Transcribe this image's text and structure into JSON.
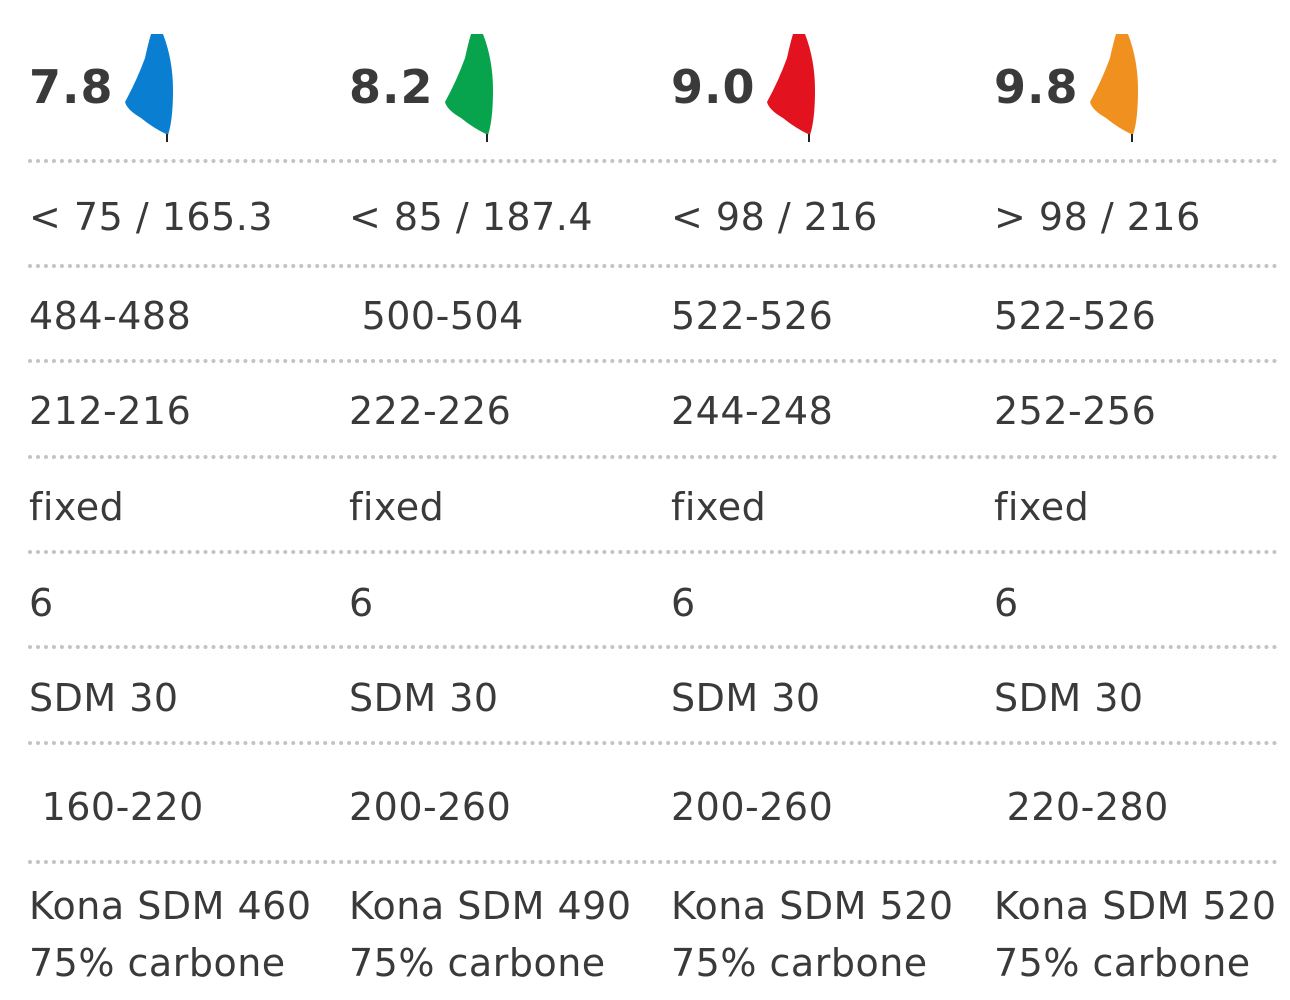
{
  "columns": [
    {
      "size": "7.8",
      "sail_color": "#0a7fd2",
      "sail_icon": "sail-icon",
      "weight_length": "< 75 / 165.3",
      "mast_length": "484-488",
      "luff": "212-216",
      "boom_type": "fixed",
      "battens": "6",
      "mast_type": "SDM 30",
      "boom_range": " 160-220",
      "mast_model": "Kona SDM 460",
      "mast_carbon": "75% carbone"
    },
    {
      "size": "8.2",
      "sail_color": "#08a34d",
      "sail_icon": "sail-icon",
      "weight_length": "< 85 / 187.4",
      "mast_length": " 500-504",
      "luff": "222-226",
      "boom_type": "fixed",
      "battens": "6",
      "mast_type": "SDM 30",
      "boom_range": "200-260",
      "mast_model": "Kona SDM 490",
      "mast_carbon": "75% carbone"
    },
    {
      "size": "9.0",
      "sail_color": "#e2131e",
      "sail_icon": "sail-icon",
      "weight_length": "< 98 / 216",
      "mast_length": "522-526",
      "luff": "244-248",
      "boom_type": "fixed",
      "battens": "6",
      "mast_type": "SDM 30",
      "boom_range": "200-260",
      "mast_model": "Kona SDM 520",
      "mast_carbon": "75% carbone"
    },
    {
      "size": "9.8",
      "sail_color": "#f0901f",
      "sail_icon": "sail-icon",
      "weight_length": "> 98 / 216",
      "mast_length": "522-526",
      "luff": "252-256",
      "boom_type": "fixed",
      "battens": "6",
      "mast_type": "SDM 30",
      "boom_range": " 220-280",
      "mast_model": "Kona SDM 520",
      "mast_carbon": "75% carbone"
    }
  ]
}
